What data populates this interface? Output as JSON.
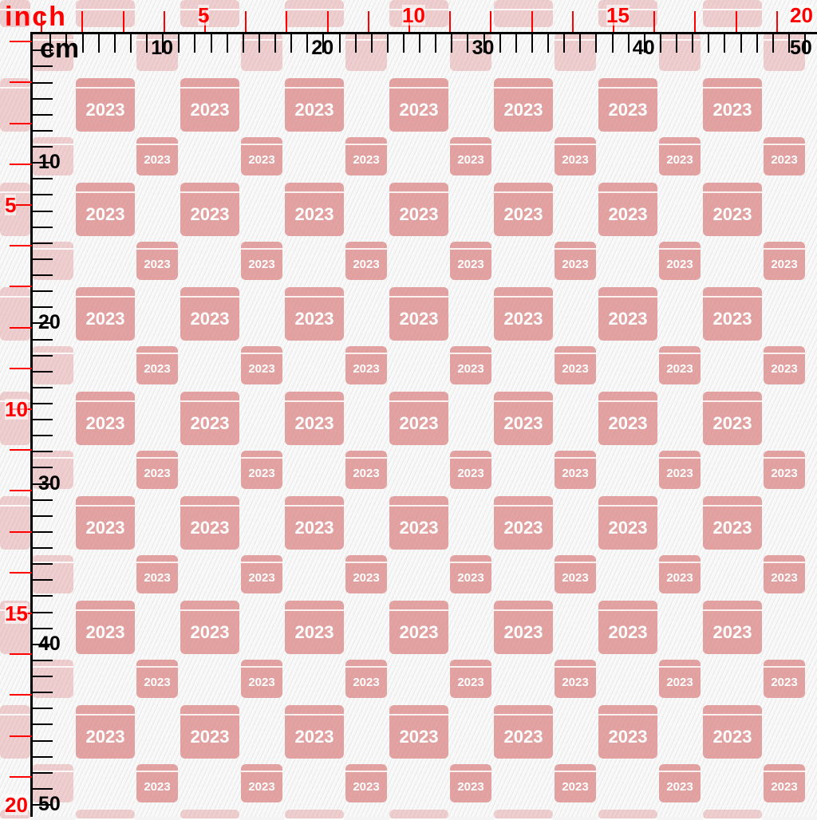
{
  "pattern": {
    "tile_text": "2023",
    "tile_color": "#d66e6e",
    "icon": "calendar-icon"
  },
  "ruler": {
    "inch_unit": "inch",
    "cm_unit": "cm",
    "inch_color": "#ff0000",
    "cm_color": "#000000",
    "top_inch_labels": [
      "5",
      "10",
      "15",
      "20"
    ],
    "top_cm_labels": [
      "10",
      "20",
      "30",
      "40",
      "50"
    ],
    "left_inch_labels": [
      "5",
      "10",
      "15",
      "20"
    ],
    "left_cm_labels": [
      "10",
      "20",
      "30",
      "40",
      "50"
    ]
  }
}
